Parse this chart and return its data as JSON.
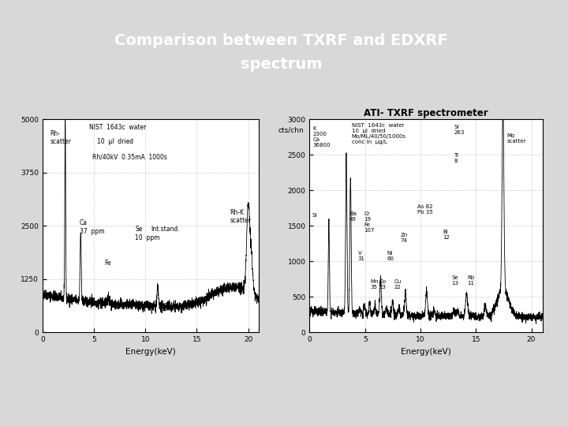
{
  "title_line1": "Comparison between TXRF and EDXRF",
  "title_line2": "spectrum",
  "title_color": "#ffffff",
  "title_bg_color": "#7a7a7a",
  "title_shadow_color": "#b0b0b0",
  "slide_bg_color": "#d8d8d8",
  "left_plot": {
    "xlabel": "Energy(keV)",
    "ylim": [
      0,
      5000
    ],
    "xlim": [
      0,
      21
    ],
    "yticks": [
      0,
      1250,
      2500,
      3750,
      5000
    ],
    "xticks": [
      0,
      5,
      10,
      15,
      20
    ]
  },
  "right_plot": {
    "title": "ATI- TXRF spectrometer",
    "ylabel": "cts/chn",
    "xlabel": "Energy(keV)",
    "ylim": [
      0,
      3000
    ],
    "xlim": [
      0,
      21
    ],
    "yticks": [
      0,
      500,
      1000,
      1500,
      2000,
      2500,
      3000
    ],
    "xticks": [
      0,
      5,
      10,
      15,
      20
    ]
  }
}
